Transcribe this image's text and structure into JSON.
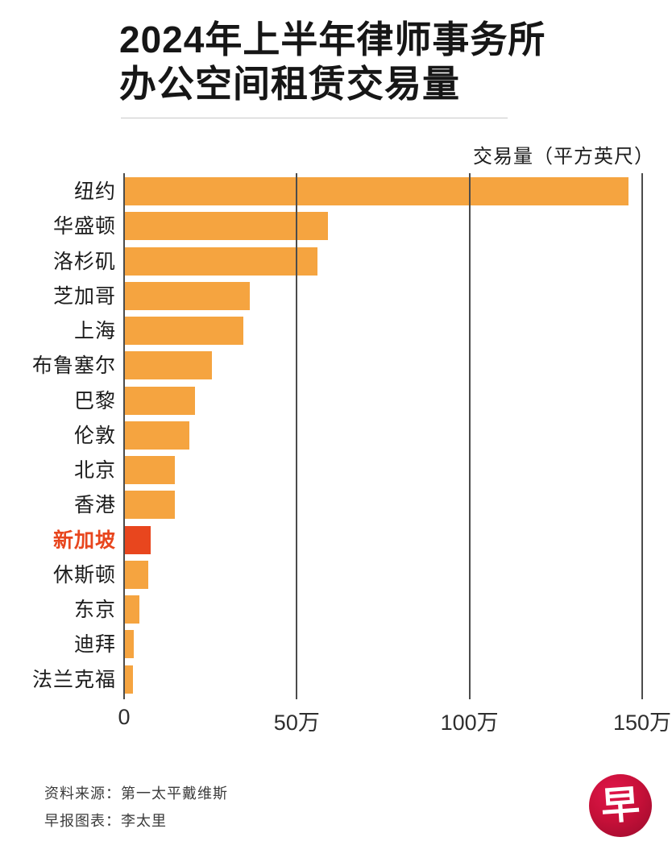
{
  "title": {
    "line1": "2024年上半年律师事务所",
    "line2": "办公空间租赁交易量"
  },
  "chart_data": {
    "type": "bar",
    "orientation": "horizontal",
    "title": "2024年上半年律师事务所办公空间租赁交易量",
    "xlabel": "交易量（平方英尺）",
    "ylabel": "",
    "unit": "万平方英尺",
    "categories": [
      "纽约",
      "华盛顿",
      "洛杉矶",
      "芝加哥",
      "上海",
      "布鲁塞尔",
      "巴黎",
      "伦敦",
      "北京",
      "香港",
      "新加坡",
      "休斯顿",
      "东京",
      "迪拜",
      "法兰克福"
    ],
    "values": [
      146,
      59,
      56,
      36.5,
      34.5,
      25.5,
      20.5,
      19,
      14.7,
      14.7,
      7.7,
      7,
      4.4,
      2.8,
      2.6
    ],
    "highlight_category": "新加坡",
    "highlight_index": 10,
    "xlim": [
      0,
      150
    ],
    "x_tick_values": [
      0,
      50,
      100,
      150
    ],
    "x_tick_labels": [
      "0",
      "50万",
      "100万",
      "150万"
    ],
    "grid": "vertical",
    "legend_position": "none",
    "bar_color": "#F5A440",
    "highlight_color": "#E8461E",
    "gridline_color": "#4c4c4c"
  },
  "axis": {
    "unit_label": "交易量（平方英尺）"
  },
  "footer": {
    "source": "资料来源：第一太平戴维斯",
    "credit": "早报图表：李太里",
    "logo_char": "早"
  }
}
